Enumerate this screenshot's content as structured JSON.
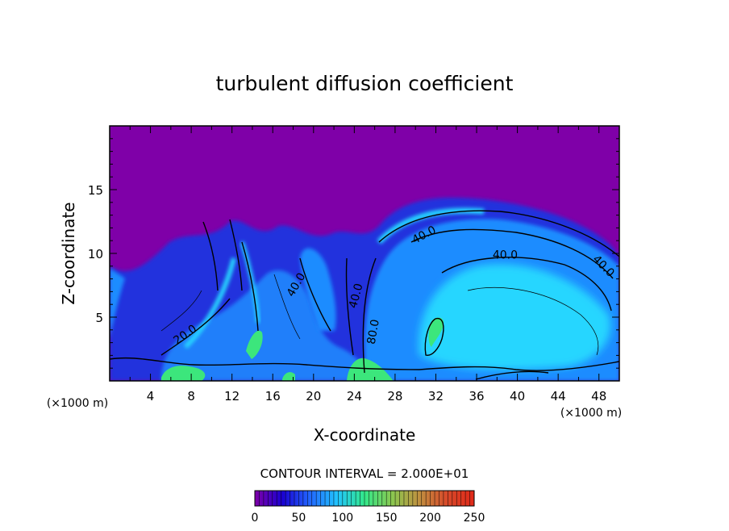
{
  "chart_data": {
    "type": "heatmap",
    "title": "turbulent diffusion coefficient",
    "xlabel": "X-coordinate",
    "ylabel": "Z-coordinate",
    "x_unit": "(×1000 m)",
    "x_unit_right": "(×1000 m)",
    "xlim": [
      0,
      50
    ],
    "ylim": [
      0,
      20
    ],
    "x_ticks": [
      4,
      8,
      12,
      16,
      20,
      24,
      28,
      32,
      36,
      40,
      44,
      48
    ],
    "y_ticks": [
      5,
      10,
      15
    ],
    "grid": false,
    "contour_interval_text": "CONTOUR INTERVAL = 2.000E+01",
    "contour_labels": [
      {
        "text": "40.0",
        "x": 31.0,
        "y": 11.2,
        "angle": -28
      },
      {
        "text": "40.0",
        "x": 38.8,
        "y": 9.6,
        "angle": 0
      },
      {
        "text": "40.0",
        "x": 48.2,
        "y": 8.8,
        "angle": 45
      },
      {
        "text": "40.0",
        "x": 24.5,
        "y": 6.6,
        "angle": -75
      },
      {
        "text": "40.0",
        "x": 18.6,
        "y": 7.4,
        "angle": -60
      },
      {
        "text": "80.0",
        "x": 26.2,
        "y": 3.8,
        "angle": -80
      },
      {
        "text": "20.0",
        "x": 7.6,
        "y": 3.4,
        "angle": -35
      }
    ],
    "colorbar": {
      "min": 0,
      "max": 250,
      "ticks": [
        0,
        50,
        100,
        150,
        200,
        250
      ],
      "colors": [
        "#7f00a8",
        "#1a00d0",
        "#2266ff",
        "#22c4ff",
        "#33e88a",
        "#8ac850",
        "#c09040",
        "#d84a2a",
        "#e02818"
      ]
    },
    "field_colors": {
      "background": "#7f00a8",
      "low": "#2233dd",
      "mid": "#1f8cff",
      "high": "#27d6ff",
      "peak": "#3ce67c"
    }
  }
}
